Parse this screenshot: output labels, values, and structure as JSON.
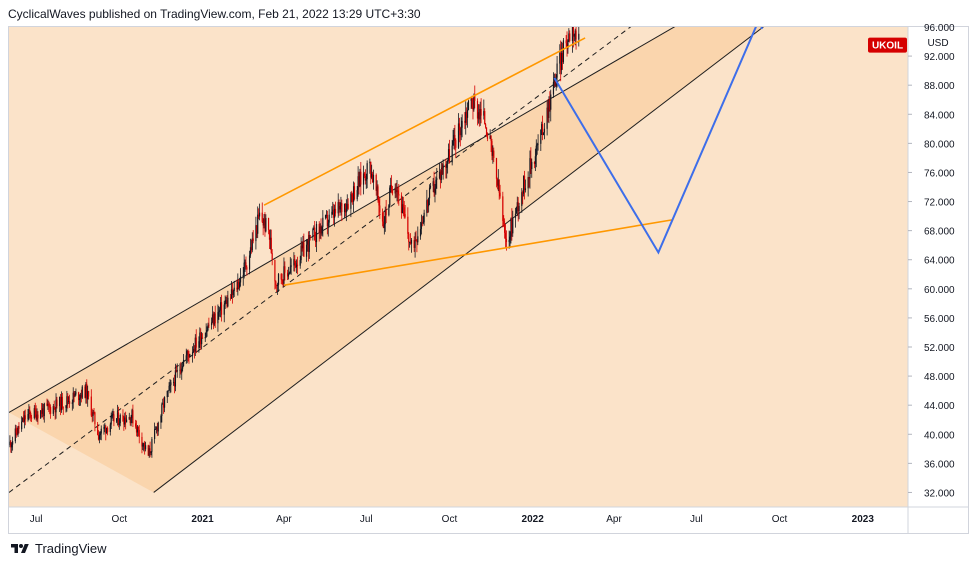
{
  "header": {
    "publisher_line": "CyclicalWaves published on TradingView.com, Feb 21, 2022 13:29 UTC+3:30"
  },
  "footer": {
    "brand": "TradingView"
  },
  "colors": {
    "background": "#fbe3c9",
    "channel_fill": "#f9d2a8",
    "channel_line": "#1f1f1f",
    "orange": "#ff9800",
    "projection": "#3d6eea",
    "candle_up": "#131722",
    "candle_down": "#d50000",
    "symbol_badge": "#d50000"
  },
  "chart_data": {
    "type": "candlestick",
    "symbol": "UKOIL",
    "currency": "USD",
    "ylim": [
      30,
      96
    ],
    "y_ticks": [
      32,
      36,
      40,
      44,
      48,
      52,
      56,
      60,
      64,
      68,
      72,
      76,
      80,
      84,
      88,
      92
    ],
    "y_tick_labels": [
      "32.000",
      "36.000",
      "40.000",
      "44.000",
      "48.000",
      "52.000",
      "56.000",
      "60.000",
      "64.000",
      "68.000",
      "72.000",
      "76.000",
      "80.000",
      "84.000",
      "88.000",
      "92.000"
    ],
    "top_partial_label": "96.000",
    "last_price": 93.5,
    "x_range": [
      "2020-06-01",
      "2023-02-20"
    ],
    "x_ticks": [
      {
        "date": "2020-07-01",
        "label": "Jul",
        "bold": false
      },
      {
        "date": "2020-10-01",
        "label": "Oct",
        "bold": false
      },
      {
        "date": "2021-01-01",
        "label": "2021",
        "bold": true
      },
      {
        "date": "2021-04-01",
        "label": "Apr",
        "bold": false
      },
      {
        "date": "2021-07-01",
        "label": "Jul",
        "bold": false
      },
      {
        "date": "2021-10-01",
        "label": "Oct",
        "bold": false
      },
      {
        "date": "2022-01-01",
        "label": "2022",
        "bold": true
      },
      {
        "date": "2022-04-01",
        "label": "Apr",
        "bold": false
      },
      {
        "date": "2022-07-01",
        "label": "Jul",
        "bold": false
      },
      {
        "date": "2022-10-01",
        "label": "Oct",
        "bold": false
      },
      {
        "date": "2023-01-01",
        "label": "2023",
        "bold": true
      }
    ],
    "price_path": [
      [
        "2020-06-01",
        38.5
      ],
      [
        "2020-06-20",
        42.5
      ],
      [
        "2020-07-15",
        43.5
      ],
      [
        "2020-08-10",
        45.0
      ],
      [
        "2020-08-25",
        46.0
      ],
      [
        "2020-09-08",
        40.0
      ],
      [
        "2020-09-25",
        42.0
      ],
      [
        "2020-10-15",
        42.5
      ],
      [
        "2020-11-02",
        37.0
      ],
      [
        "2020-11-20",
        44.5
      ],
      [
        "2020-12-10",
        50.0
      ],
      [
        "2021-01-08",
        55.0
      ],
      [
        "2021-02-05",
        59.5
      ],
      [
        "2021-02-20",
        64.0
      ],
      [
        "2021-03-05",
        70.0
      ],
      [
        "2021-03-15",
        68.0
      ],
      [
        "2021-03-23",
        61.0
      ],
      [
        "2021-04-10",
        63.0
      ],
      [
        "2021-05-05",
        67.5
      ],
      [
        "2021-06-10",
        72.0
      ],
      [
        "2021-07-05",
        77.0
      ],
      [
        "2021-07-20",
        69.0
      ],
      [
        "2021-08-01",
        75.5
      ],
      [
        "2021-08-20",
        65.5
      ],
      [
        "2021-09-10",
        73.0
      ],
      [
        "2021-10-01",
        78.5
      ],
      [
        "2021-10-25",
        86.0
      ],
      [
        "2021-11-10",
        83.0
      ],
      [
        "2021-11-26",
        72.5
      ],
      [
        "2021-12-02",
        66.0
      ],
      [
        "2021-12-20",
        73.5
      ],
      [
        "2022-01-10",
        81.0
      ],
      [
        "2022-01-28",
        90.0
      ],
      [
        "2022-02-14",
        96.5
      ],
      [
        "2022-02-21",
        93.5
      ]
    ],
    "annotations": {
      "channel_upper": [
        [
          "2020-06-01",
          43.0
        ],
        [
          "2022-08-01",
          100.0
        ]
      ],
      "channel_mid": [
        [
          "2020-06-01",
          32.0
        ],
        [
          "2022-06-01",
          100.0
        ]
      ],
      "channel_lower": [
        [
          "2020-11-08",
          32.0
        ],
        [
          "2022-10-25",
          100.0
        ]
      ],
      "wedge_top": [
        [
          "2021-03-10",
          71.5
        ],
        [
          "2022-02-28",
          94.5
        ]
      ],
      "wedge_bottom": [
        [
          "2021-04-01",
          60.5
        ],
        [
          "2022-06-05",
          69.5
        ]
      ],
      "projection": [
        [
          "2022-01-25",
          89.0
        ],
        [
          "2022-05-20",
          65.0
        ],
        [
          "2022-09-10",
          97.5
        ]
      ],
      "projection_arrowhead": [
        "2022-09-10",
        97.5
      ]
    }
  }
}
